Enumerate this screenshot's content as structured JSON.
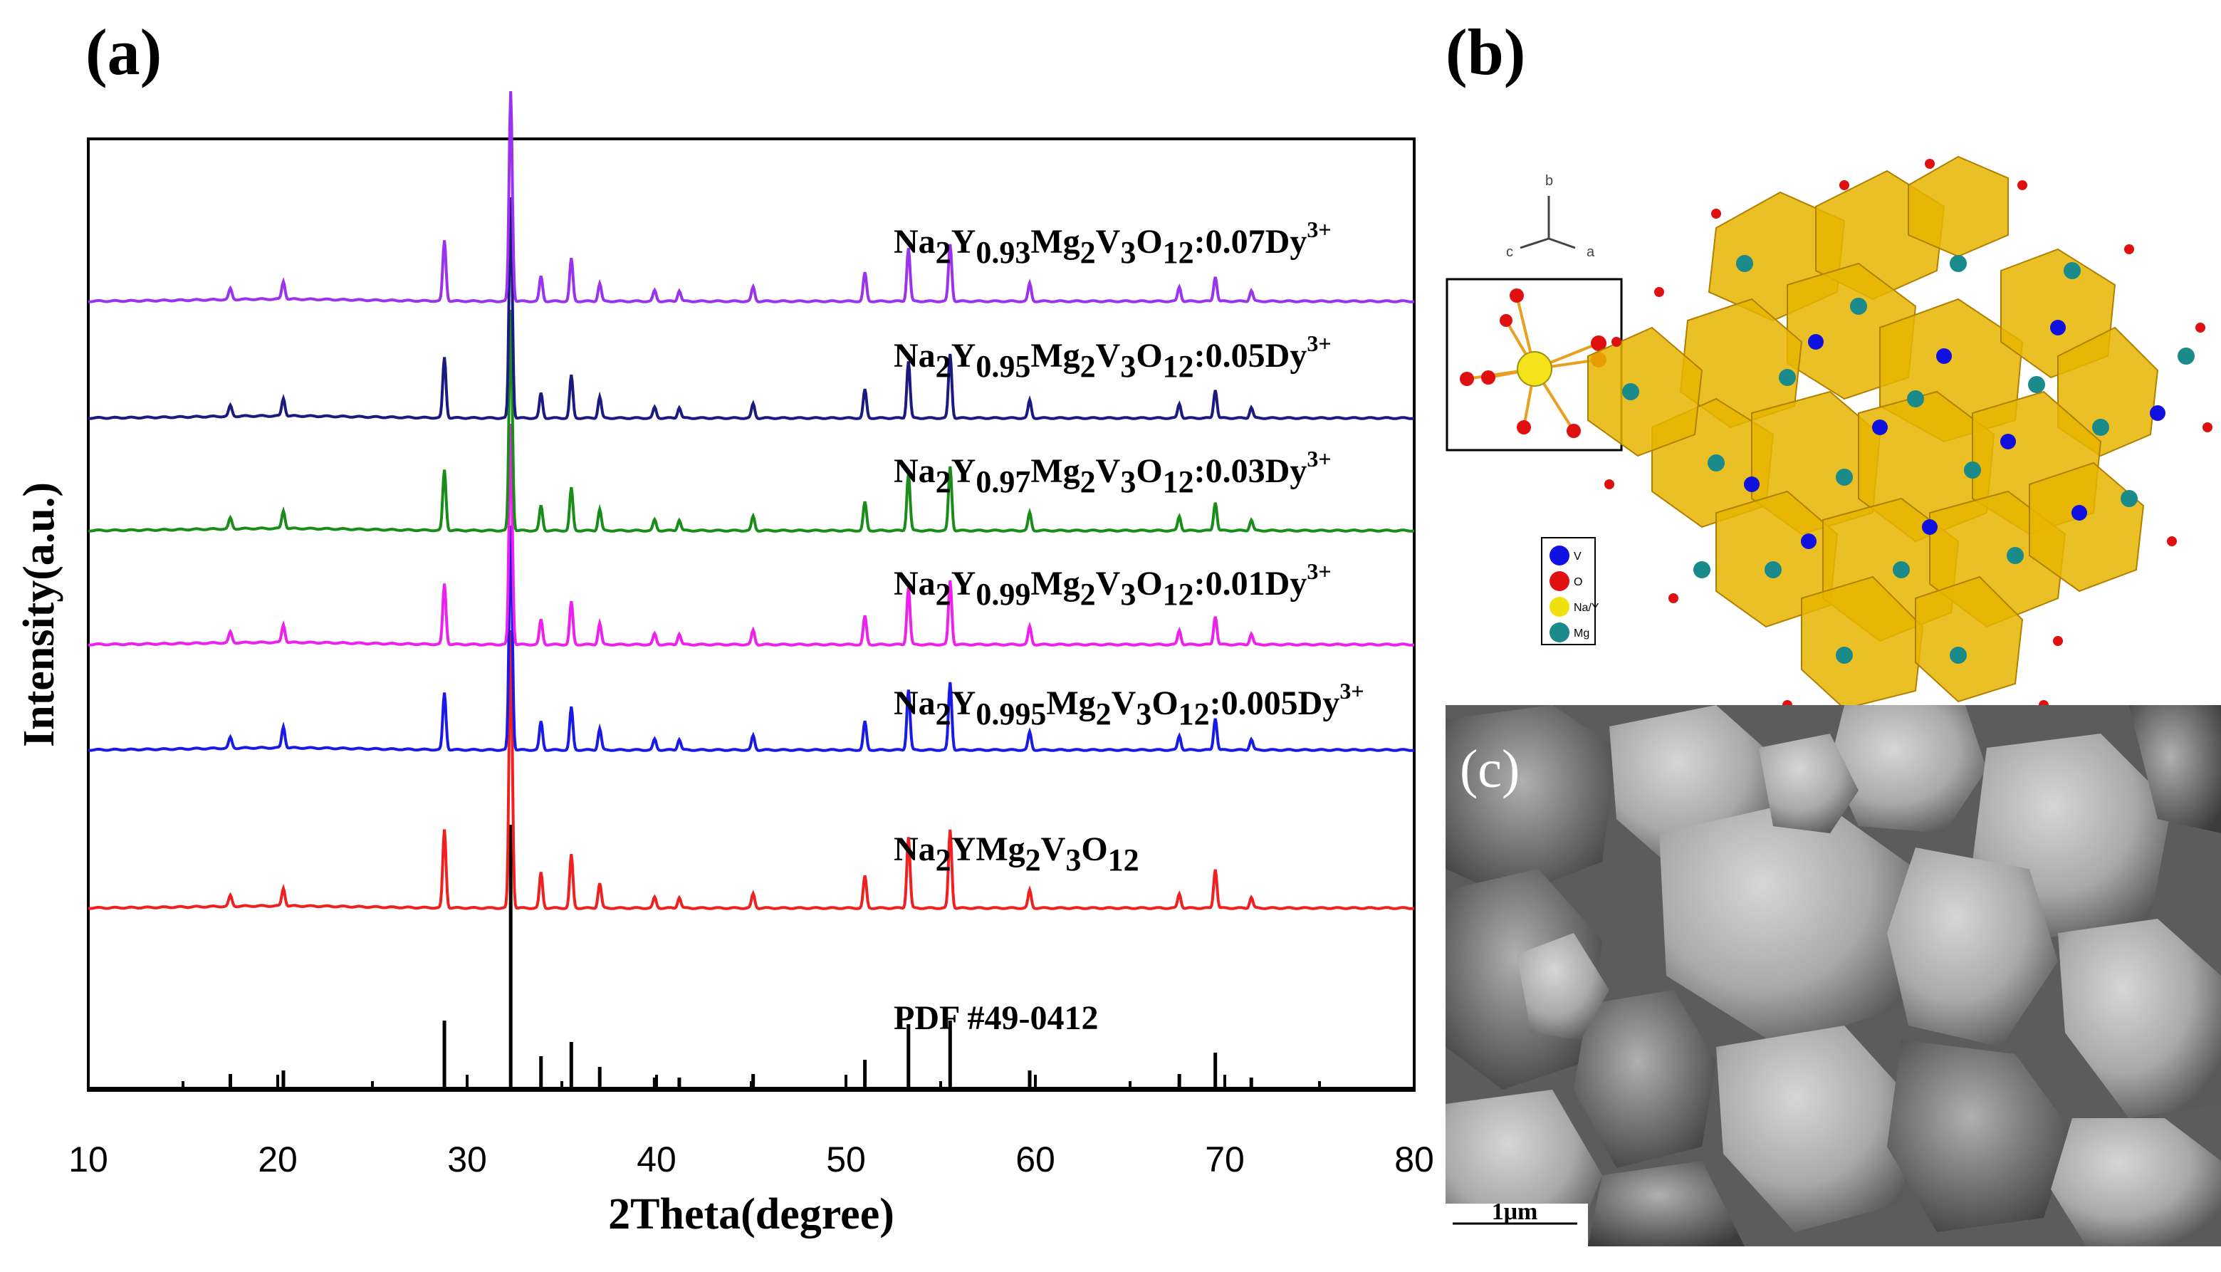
{
  "panels": {
    "a": {
      "label": "(a)"
    },
    "b": {
      "label": "(b)"
    },
    "c": {
      "label": "(c)"
    }
  },
  "chart_data": {
    "type": "line",
    "title": "",
    "xlabel": "2Theta(degree)",
    "ylabel": "Intensity(a.u.)",
    "xlim": [
      10,
      80
    ],
    "xticks": [
      10,
      20,
      30,
      40,
      50,
      60,
      70,
      80
    ],
    "peaks_2theta": [
      17.5,
      20.3,
      28.8,
      32.3,
      33.9,
      35.5,
      37.0,
      39.9,
      41.2,
      45.1,
      51.0,
      53.3,
      55.5,
      59.7,
      67.6,
      69.5,
      71.4
    ],
    "series": [
      {
        "name": "PDF #49-0412",
        "label_parts": [
          "PDF #49-0412"
        ],
        "color": "#000000",
        "style": "stick",
        "intensities": [
          0.04,
          0.05,
          0.19,
          0.74,
          0.09,
          0.13,
          0.06,
          0.03,
          0.03,
          0.04,
          0.08,
          0.18,
          0.19,
          0.05,
          0.04,
          0.1,
          0.03
        ]
      },
      {
        "name": "Na2YMg2V3O12",
        "label_parts": [
          "Na",
          "2",
          "YMg",
          "2",
          "V",
          "3",
          "O",
          "12"
        ],
        "color": "#ee2020",
        "style": "profile",
        "intensities": [
          0.03,
          0.05,
          0.22,
          0.78,
          0.1,
          0.15,
          0.07,
          0.03,
          0.03,
          0.04,
          0.09,
          0.2,
          0.22,
          0.05,
          0.04,
          0.11,
          0.03
        ]
      },
      {
        "name": "Na2Y0.995Mg2V3O12:0.005Dy3+",
        "label_parts": [
          "Na",
          "2",
          "Y",
          "0.995",
          "Mg",
          "2",
          "V",
          "3",
          "O",
          "12",
          ":0.005Dy",
          "3+"
        ],
        "color": "#1a1ae6",
        "style": "profile",
        "intensities": [
          0.03,
          0.06,
          0.16,
          0.63,
          0.08,
          0.12,
          0.06,
          0.03,
          0.03,
          0.04,
          0.08,
          0.17,
          0.19,
          0.05,
          0.04,
          0.09,
          0.03
        ]
      },
      {
        "name": "Na2Y0.99Mg2V3O12:0.01Dy3+",
        "label_parts": [
          "Na",
          "2",
          "Y",
          "0.99",
          "Mg",
          "2",
          "V",
          "3",
          "O",
          "12",
          ":0.01Dy",
          "3+"
        ],
        "color": "#ee20ee",
        "style": "profile",
        "intensities": [
          0.03,
          0.05,
          0.17,
          0.62,
          0.07,
          0.12,
          0.06,
          0.03,
          0.03,
          0.04,
          0.08,
          0.16,
          0.18,
          0.05,
          0.04,
          0.08,
          0.03
        ]
      },
      {
        "name": "Na2Y0.97Mg2V3O12:0.03Dy3+",
        "label_parts": [
          "Na",
          "2",
          "Y",
          "0.97",
          "Mg",
          "2",
          "V",
          "3",
          "O",
          "12",
          ":0.03Dy",
          "3+"
        ],
        "color": "#1a8c1a",
        "style": "profile",
        "intensities": [
          0.03,
          0.05,
          0.17,
          0.62,
          0.07,
          0.12,
          0.06,
          0.03,
          0.03,
          0.04,
          0.08,
          0.16,
          0.18,
          0.05,
          0.04,
          0.08,
          0.03
        ]
      },
      {
        "name": "Na2Y0.95Mg2V3O12:0.05Dy3+",
        "label_parts": [
          "Na",
          "2",
          "Y",
          "0.95",
          "Mg",
          "2",
          "V",
          "3",
          "O",
          "12",
          ":0.05Dy",
          "3+"
        ],
        "color": "#1a1a80",
        "style": "profile",
        "intensities": [
          0.03,
          0.05,
          0.17,
          0.62,
          0.07,
          0.12,
          0.06,
          0.03,
          0.03,
          0.04,
          0.08,
          0.16,
          0.18,
          0.05,
          0.04,
          0.08,
          0.03
        ]
      },
      {
        "name": "Na2Y0.93Mg2V3O12:0.07Dy3+",
        "label_parts": [
          "Na",
          "2",
          "Y",
          "0.93",
          "Mg",
          "2",
          "V",
          "3",
          "O",
          "12",
          ":0.07Dy",
          "3+"
        ],
        "color": "#9933ee",
        "style": "profile",
        "intensities": [
          0.03,
          0.05,
          0.17,
          0.59,
          0.07,
          0.12,
          0.05,
          0.03,
          0.03,
          0.04,
          0.08,
          0.15,
          0.16,
          0.05,
          0.04,
          0.07,
          0.03
        ]
      }
    ]
  },
  "crystal_structure": {
    "axes": {
      "b": "b",
      "c": "c",
      "a": "a"
    },
    "legend": [
      {
        "label": "V",
        "color": "#1010e0"
      },
      {
        "label": "O",
        "color": "#e01010"
      },
      {
        "label": "Na/Y",
        "color": "#f0e010"
      },
      {
        "label": "Mg",
        "color": "#1a8a8a"
      }
    ]
  },
  "sem": {
    "scale_bar": "1μm"
  }
}
